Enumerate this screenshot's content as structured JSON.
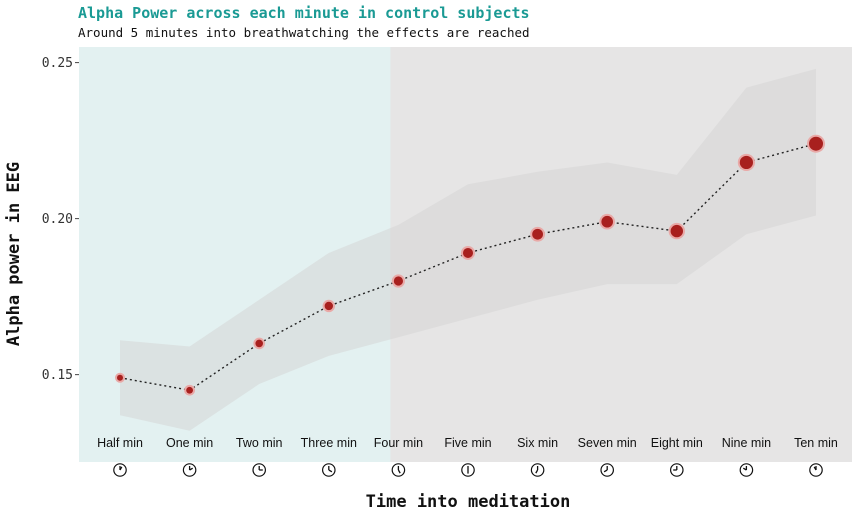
{
  "chart_data": {
    "type": "line",
    "title": "Alpha Power across each minute in control subjects",
    "subtitle": "Around 5 minutes into breathwatching the effects are reached",
    "xlabel": "Time into meditation",
    "ylabel": "Alpha power in EEG",
    "categories": [
      "Half min",
      "One min",
      "Two min",
      "Three min",
      "Four min",
      "Five min",
      "Six min",
      "Seven min",
      "Eight min",
      "Nine min",
      "Ten min"
    ],
    "values": [
      0.149,
      0.145,
      0.16,
      0.172,
      0.18,
      0.189,
      0.195,
      0.199,
      0.196,
      0.218,
      0.224
    ],
    "band_lower": [
      0.137,
      0.132,
      0.147,
      0.156,
      0.162,
      0.168,
      0.174,
      0.179,
      0.179,
      0.195,
      0.201
    ],
    "band_upper": [
      0.161,
      0.159,
      0.174,
      0.189,
      0.198,
      0.211,
      0.215,
      0.218,
      0.214,
      0.242,
      0.248
    ],
    "yticks": [
      0.15,
      0.2,
      0.25
    ],
    "ytick_labels": [
      "0.15",
      "0.20",
      "0.25"
    ],
    "ylim": [
      0.122,
      0.255
    ],
    "highlight_range": [
      "Half min",
      "Four min"
    ],
    "grid": false,
    "colors": {
      "highlight_region": "#e3f1f1",
      "panel_background": "#e6e5e5",
      "band": "#d6d6d6",
      "point": "#a8201e",
      "point_halo": "#e9a9a7",
      "line": "#222222",
      "title": "#1a9a94"
    },
    "x_icons": [
      "clock-icon",
      "clock-icon",
      "clock-icon",
      "clock-icon",
      "clock-icon",
      "clock-icon",
      "clock-icon",
      "clock-icon",
      "clock-icon",
      "clock-icon",
      "clock-icon"
    ]
  }
}
